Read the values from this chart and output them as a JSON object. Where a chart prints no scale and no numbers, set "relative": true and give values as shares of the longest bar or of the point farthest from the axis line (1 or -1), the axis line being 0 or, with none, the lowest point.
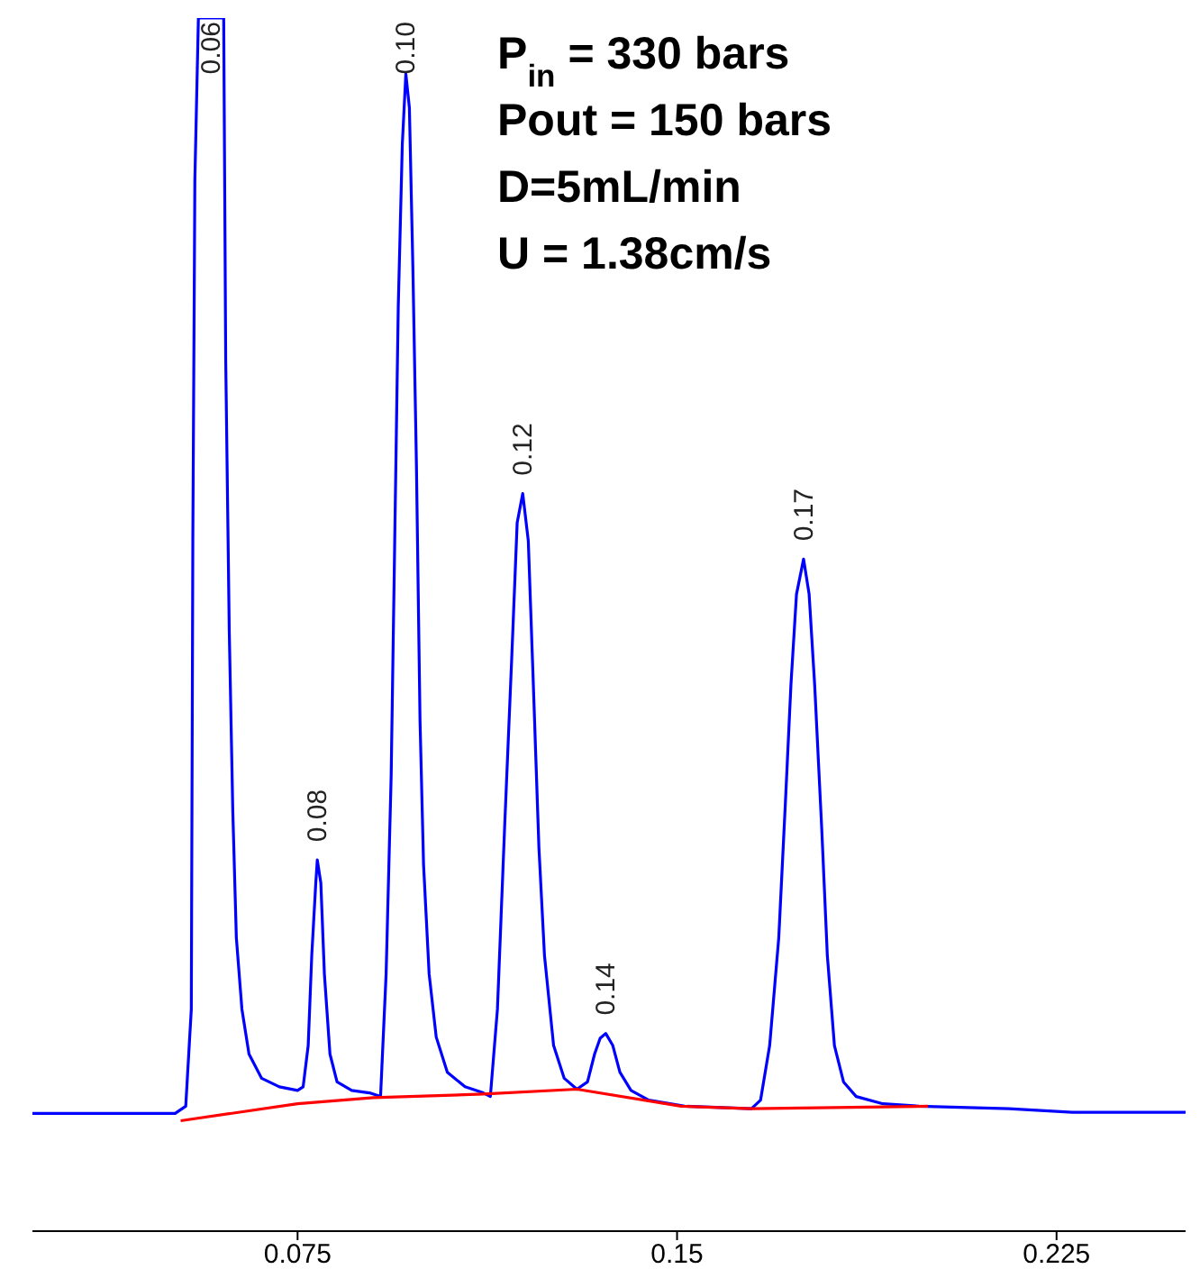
{
  "chart_data": {
    "type": "line",
    "relative": true,
    "tick_labels": "x",
    "xlim": [
      0.0226,
      0.2505
    ],
    "xticks": [
      0.075,
      0.15,
      0.225
    ],
    "series": [
      {
        "color": "#0000ff",
        "x": [
          0.0226,
          0.0508,
          0.0529,
          0.054,
          0.0543,
          0.0547,
          0.0554,
          0.0604,
          0.0608,
          0.0615,
          0.0622,
          0.0629,
          0.064,
          0.0654,
          0.0679,
          0.0714,
          0.075,
          0.0761,
          0.0771,
          0.0778,
          0.0786,
          0.0789,
          0.0796,
          0.0803,
          0.0814,
          0.0828,
          0.0857,
          0.0892,
          0.0914,
          0.0925,
          0.0935,
          0.0942,
          0.0949,
          0.0957,
          0.0964,
          0.0971,
          0.0978,
          0.0985,
          0.0992,
          0.0999,
          0.101,
          0.1024,
          0.1046,
          0.1081,
          0.1117,
          0.1131,
          0.1145,
          0.1159,
          0.1174,
          0.1184,
          0.1195,
          0.1206,
          0.1216,
          0.1227,
          0.1238,
          0.1256,
          0.1277,
          0.1302,
          0.1323,
          0.1337,
          0.1348,
          0.1359,
          0.1373,
          0.1387,
          0.1409,
          0.1444,
          0.1515,
          0.1647,
          0.1665,
          0.1683,
          0.1701,
          0.1715,
          0.1725,
          0.1736,
          0.175,
          0.1761,
          0.1772,
          0.1786,
          0.1797,
          0.1811,
          0.1829,
          0.1854,
          0.1907,
          0.1978,
          0.2156,
          0.2281,
          0.2505
        ],
        "values": [
          0.097,
          0.097,
          0.103,
          0.183,
          0.569,
          0.866,
          1.0,
          1.0,
          0.718,
          0.495,
          0.346,
          0.242,
          0.183,
          0.146,
          0.126,
          0.119,
          0.116,
          0.119,
          0.153,
          0.227,
          0.287,
          0.306,
          0.287,
          0.212,
          0.146,
          0.123,
          0.116,
          0.114,
          0.111,
          0.212,
          0.376,
          0.569,
          0.762,
          0.896,
          0.954,
          0.926,
          0.792,
          0.629,
          0.421,
          0.302,
          0.212,
          0.16,
          0.131,
          0.119,
          0.114,
          0.111,
          0.183,
          0.331,
          0.48,
          0.584,
          0.608,
          0.569,
          0.45,
          0.316,
          0.227,
          0.153,
          0.126,
          0.117,
          0.123,
          0.146,
          0.159,
          0.163,
          0.153,
          0.131,
          0.116,
          0.108,
          0.103,
          0.101,
          0.108,
          0.153,
          0.242,
          0.361,
          0.45,
          0.525,
          0.554,
          0.525,
          0.45,
          0.331,
          0.227,
          0.153,
          0.123,
          0.111,
          0.105,
          0.103,
          0.101,
          0.098,
          0.098
        ]
      },
      {
        "color": "#ff0000",
        "x": [
          0.0519,
          0.075,
          0.09,
          0.1117,
          0.1302,
          0.1508,
          0.1647,
          0.1996
        ],
        "values": [
          0.091,
          0.105,
          0.11,
          0.113,
          0.117,
          0.103,
          0.101,
          0.103
        ]
      }
    ],
    "annotations": [
      "P$_{in}$ = 330 bars",
      "Pout = 150 bars",
      "D=5mL/min",
      "U = 1.38cm/s",
      {
        "text": "0.06",
        "x": 0.0579,
        "y": 1.0
      },
      {
        "text": "0.08",
        "x": 0.0789,
        "y": 0.306
      },
      {
        "text": "0.10",
        "x": 0.0964,
        "y": 0.954
      },
      {
        "text": "0.12",
        "x": 0.1195,
        "y": 0.608
      },
      {
        "text": "0.14",
        "x": 0.1359,
        "y": 0.163
      },
      {
        "text": "0.17",
        "x": 0.175,
        "y": 0.554
      }
    ]
  }
}
